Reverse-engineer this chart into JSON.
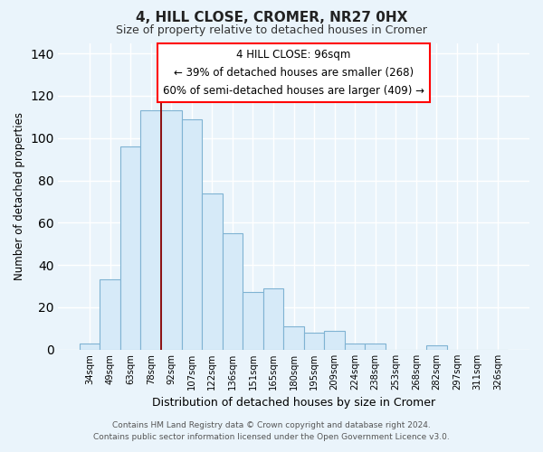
{
  "title": "4, HILL CLOSE, CROMER, NR27 0HX",
  "subtitle": "Size of property relative to detached houses in Cromer",
  "xlabel": "Distribution of detached houses by size in Cromer",
  "ylabel": "Number of detached properties",
  "bar_labels": [
    "34sqm",
    "49sqm",
    "63sqm",
    "78sqm",
    "92sqm",
    "107sqm",
    "122sqm",
    "136sqm",
    "151sqm",
    "165sqm",
    "180sqm",
    "195sqm",
    "209sqm",
    "224sqm",
    "238sqm",
    "253sqm",
    "268sqm",
    "282sqm",
    "297sqm",
    "311sqm",
    "326sqm"
  ],
  "bar_values": [
    3,
    33,
    96,
    113,
    113,
    109,
    74,
    55,
    27,
    29,
    11,
    8,
    9,
    3,
    3,
    0,
    0,
    2,
    0,
    0,
    0
  ],
  "bar_color": "#d6eaf8",
  "bar_edge_color": "#7fb3d3",
  "red_line_index": 4.5,
  "ylim": [
    0,
    145
  ],
  "yticks": [
    0,
    20,
    40,
    60,
    80,
    100,
    120,
    140
  ],
  "annotation_title": "4 HILL CLOSE: 96sqm",
  "annotation_line1": "← 39% of detached houses are smaller (268)",
  "annotation_line2": "60% of semi-detached houses are larger (409) →",
  "footer_line1": "Contains HM Land Registry data © Crown copyright and database right 2024.",
  "footer_line2": "Contains public sector information licensed under the Open Government Licence v3.0.",
  "background_color": "#eaf4fb",
  "plot_bg_color": "#eaf4fb",
  "grid_color": "#ffffff"
}
